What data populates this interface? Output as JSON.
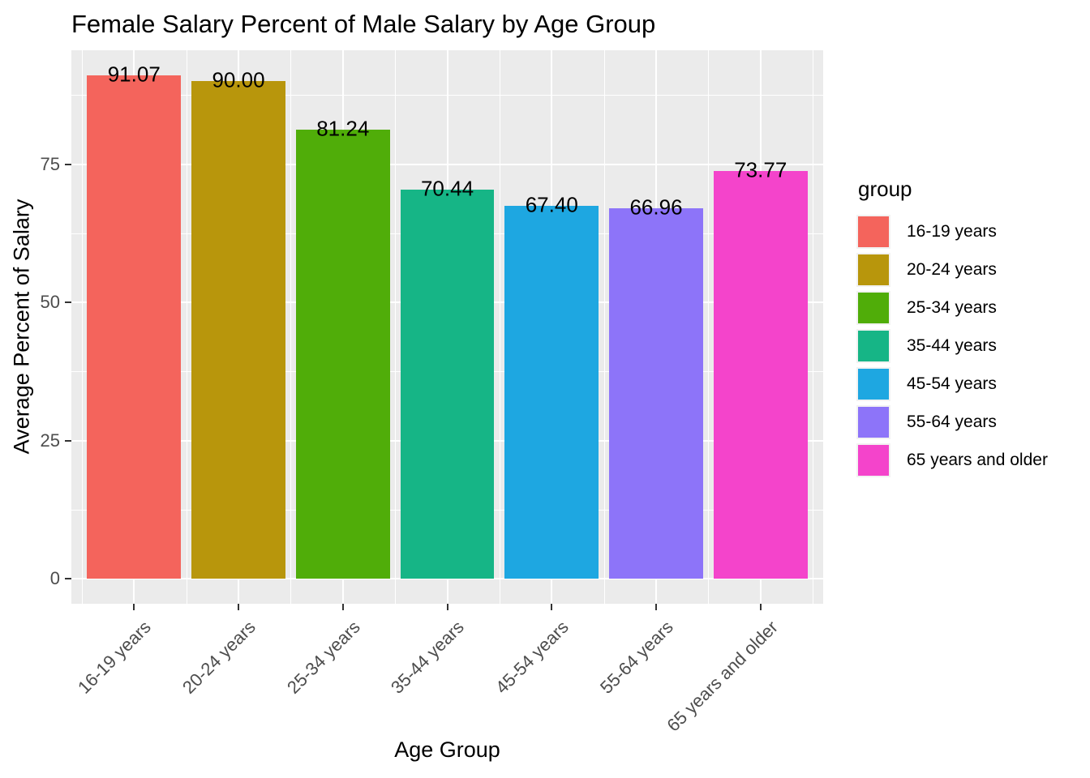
{
  "title": "Female Salary Percent of Male Salary by Age Group",
  "chart_data": {
    "type": "bar",
    "title": "Female Salary Percent of Male Salary by Age Group",
    "xlabel": "Age Group",
    "ylabel": "Average Percent of Salary",
    "categories": [
      "16-19 years",
      "20-24 years",
      "25-34 years",
      "35-44 years",
      "45-54 years",
      "55-64 years",
      "65 years and older"
    ],
    "values": [
      91.07,
      90.0,
      81.24,
      70.44,
      67.4,
      66.96,
      73.77
    ],
    "value_labels": [
      "91.07",
      "90.00",
      "81.24",
      "70.44",
      "67.40",
      "66.96",
      "73.77"
    ],
    "bar_colors": [
      "#F4645C",
      "#B8960C",
      "#50AD09",
      "#16B586",
      "#1EA7E1",
      "#8D74F9",
      "#F444CB"
    ],
    "yticks": [
      0,
      25,
      50,
      75
    ],
    "minor_yticks": [
      12.5,
      37.5,
      62.5,
      87.5
    ],
    "ylim": [
      -4.55,
      95.62
    ],
    "grid": "on",
    "panel_background": "#EBEBEB",
    "grid_color": "#FFFFFF",
    "axis_text_color": "#4D4D4D",
    "legend": {
      "title": "group",
      "position": "right",
      "entries": [
        {
          "label": "16-19 years",
          "color": "#F4645C"
        },
        {
          "label": "20-24 years",
          "color": "#B8960C"
        },
        {
          "label": "25-34 years",
          "color": "#50AD09"
        },
        {
          "label": "35-44 years",
          "color": "#16B586"
        },
        {
          "label": "45-54 years",
          "color": "#1EA7E1"
        },
        {
          "label": "55-64 years",
          "color": "#8D74F9"
        },
        {
          "label": "65 years and older",
          "color": "#F444CB"
        }
      ]
    }
  }
}
